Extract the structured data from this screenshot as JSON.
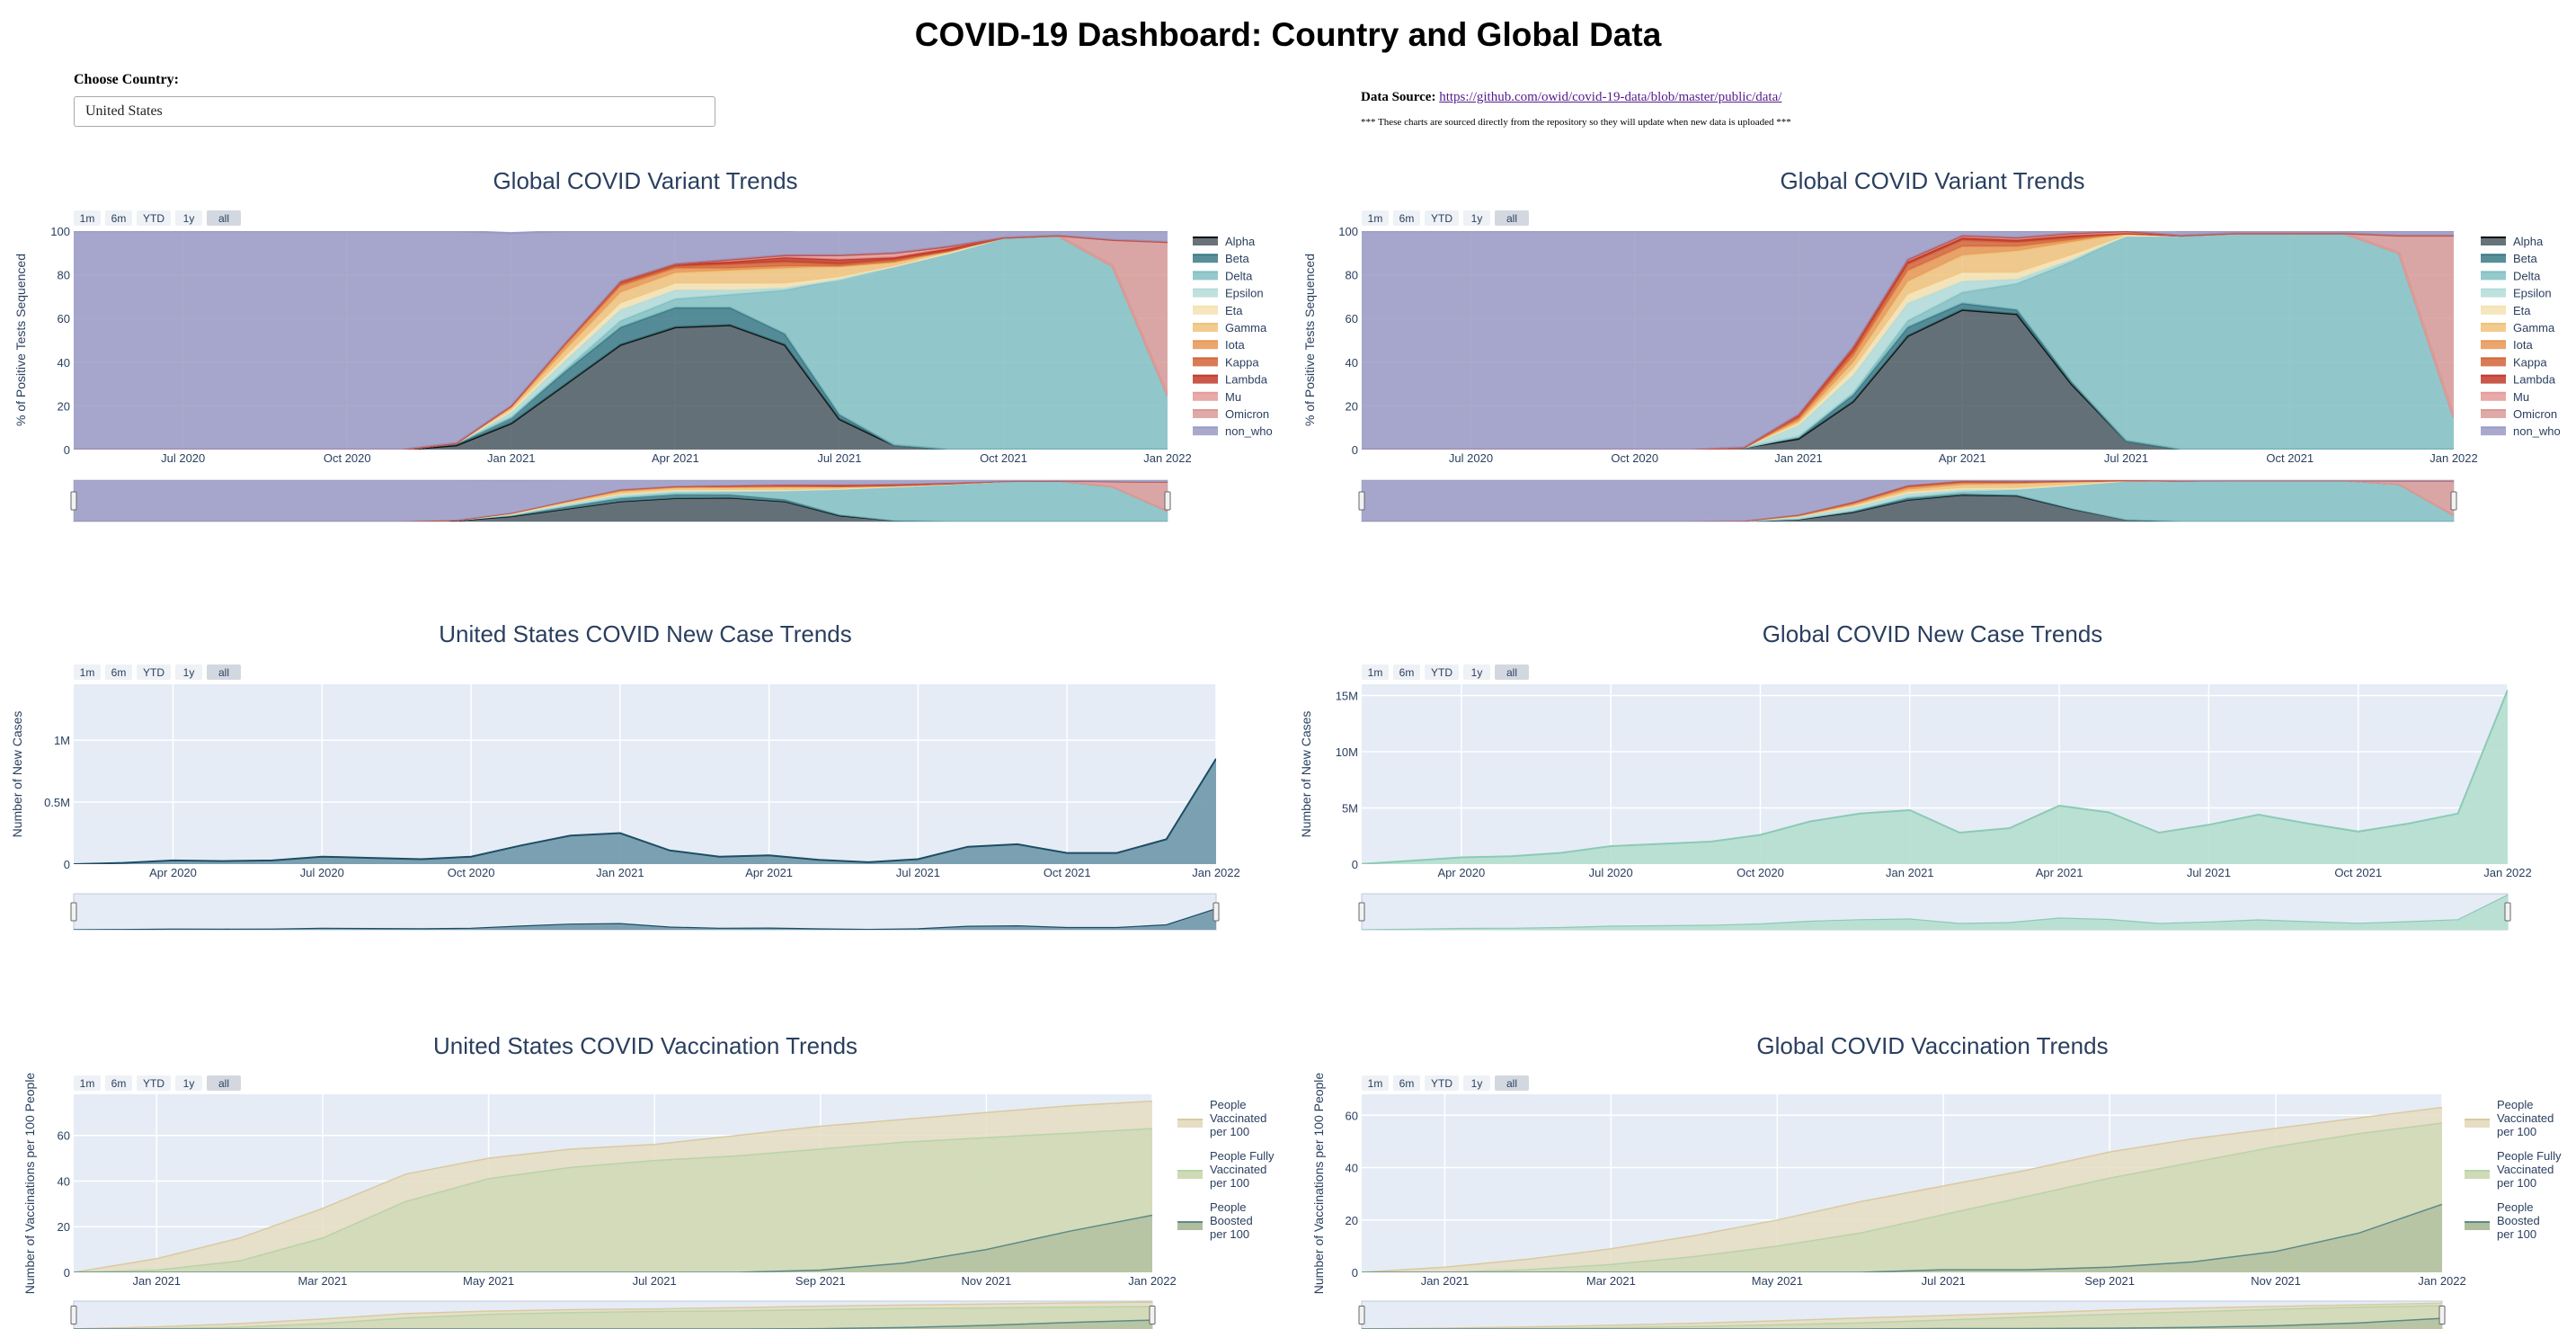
{
  "page": {
    "title": "COVID-19 Dashboard: Country and Global Data",
    "country_label": "Choose Country:",
    "country_value": "United States",
    "source_label": "Data Source:",
    "source_link": "https://github.com/owid/covid-19-data/blob/master/public/data/",
    "source_note": "*** These charts are sourced directly from the repository so they will update when new data is uploaded ***"
  },
  "range_buttons": [
    "1m",
    "6m",
    "YTD",
    "1y",
    "all"
  ],
  "colors": {
    "plot_bg": "#e5ecf6",
    "Alpha": "#4c5a60",
    "Beta": "#3b7a86",
    "Delta": "#82bfc2",
    "Epsilon": "#b3dcd8",
    "Eta": "#f5e2b2",
    "Gamma": "#f0c27a",
    "Iota": "#e89654",
    "Kappa": "#d2643a",
    "Lambda": "#c03a2a",
    "Mu": "#e49a9a",
    "Omicron": "#d89a96",
    "non_who": "#9b9ac4",
    "us_cases": "#6f98aa",
    "us_cases_line": "#1d4e63",
    "global_cases": "#b5dfcf",
    "global_cases_line": "#8ccab5",
    "vacc_people": "#e6ddc2",
    "vacc_full": "#cfdbb7",
    "vacc_boost": "#aebd9e"
  },
  "chart_data": [
    {
      "type": "area",
      "title": "Global COVID Variant Trends",
      "xlabel": "",
      "ylabel": "% of Positive Tests Sequenced",
      "x_ticks": [
        "Jul 2020",
        "Oct 2020",
        "Jan 2021",
        "Apr 2021",
        "Jul 2021",
        "Oct 2021",
        "Jan 2022"
      ],
      "y_ticks": [
        "0",
        "20",
        "40",
        "60",
        "80",
        "100"
      ],
      "ylim": [
        0,
        100
      ],
      "stacked": true,
      "x": [
        "2020-05",
        "2020-06",
        "2020-07",
        "2020-08",
        "2020-09",
        "2020-10",
        "2020-11",
        "2020-12",
        "2021-01",
        "2021-02",
        "2021-03",
        "2021-04",
        "2021-05",
        "2021-06",
        "2021-07",
        "2021-08",
        "2021-09",
        "2021-10",
        "2021-11",
        "2021-12",
        "2022-01"
      ],
      "series": [
        {
          "name": "Alpha",
          "values": [
            0,
            0,
            0,
            0,
            0,
            0,
            0,
            2,
            12,
            30,
            48,
            56,
            57,
            48,
            14,
            2,
            0,
            0,
            0,
            0,
            0
          ]
        },
        {
          "name": "Beta",
          "values": [
            0,
            0,
            0,
            0,
            0,
            0,
            0,
            1,
            3,
            6,
            8,
            9,
            8,
            5,
            2,
            0,
            0,
            0,
            0,
            0,
            0
          ]
        },
        {
          "name": "Delta",
          "values": [
            0,
            0,
            0,
            0,
            0,
            0,
            0,
            0,
            0,
            1,
            3,
            4,
            6,
            20,
            62,
            82,
            90,
            97,
            98,
            84,
            25
          ]
        },
        {
          "name": "Epsilon",
          "values": [
            0,
            0,
            0,
            0,
            0,
            0,
            0,
            0,
            2,
            4,
            5,
            4,
            2,
            1,
            0,
            0,
            0,
            0,
            0,
            0,
            0
          ]
        },
        {
          "name": "Eta",
          "values": [
            0,
            0,
            0,
            0,
            0,
            0,
            0,
            0,
            1,
            2,
            3,
            3,
            3,
            2,
            1,
            0,
            0,
            0,
            0,
            0,
            0
          ]
        },
        {
          "name": "Gamma",
          "values": [
            0,
            0,
            0,
            0,
            0,
            0,
            0,
            0,
            1,
            3,
            5,
            5,
            6,
            7,
            5,
            2,
            1,
            0,
            0,
            0,
            0
          ]
        },
        {
          "name": "Iota",
          "values": [
            0,
            0,
            0,
            0,
            0,
            0,
            0,
            0,
            1,
            2,
            3,
            2,
            1,
            1,
            0,
            0,
            0,
            0,
            0,
            0,
            0
          ]
        },
        {
          "name": "Kappa",
          "values": [
            0,
            0,
            0,
            0,
            0,
            0,
            0,
            0,
            0,
            1,
            1,
            1,
            2,
            2,
            1,
            1,
            0,
            0,
            0,
            0,
            0
          ]
        },
        {
          "name": "Lambda",
          "values": [
            0,
            0,
            0,
            0,
            0,
            0,
            0,
            0,
            0,
            0,
            1,
            1,
            1,
            2,
            2,
            1,
            1,
            0,
            0,
            0,
            0
          ]
        },
        {
          "name": "Mu",
          "values": [
            0,
            0,
            0,
            0,
            0,
            0,
            0,
            0,
            0,
            0,
            0,
            0,
            1,
            1,
            2,
            2,
            1,
            0,
            0,
            0,
            0
          ]
        },
        {
          "name": "Omicron",
          "values": [
            0,
            0,
            0,
            0,
            0,
            0,
            0,
            0,
            0,
            0,
            0,
            0,
            0,
            0,
            0,
            0,
            0,
            0,
            0,
            12,
            70
          ]
        },
        {
          "name": "non_who",
          "values": [
            100,
            100,
            100,
            100,
            100,
            100,
            100,
            97,
            79,
            51,
            23,
            15,
            13,
            11,
            13,
            12,
            7,
            3,
            2,
            4,
            5
          ]
        }
      ]
    },
    {
      "type": "area",
      "title": "Global COVID Variant Trends",
      "xlabel": "",
      "ylabel": "% of Positive Tests Sequenced",
      "x_ticks": [
        "Jul 2020",
        "Oct 2020",
        "Jan 2021",
        "Apr 2021",
        "Jul 2021",
        "Oct 2021",
        "Jan 2022"
      ],
      "y_ticks": [
        "0",
        "20",
        "40",
        "60",
        "80",
        "100"
      ],
      "ylim": [
        0,
        100
      ],
      "stacked": true,
      "x": [
        "2020-05",
        "2020-06",
        "2020-07",
        "2020-08",
        "2020-09",
        "2020-10",
        "2020-11",
        "2020-12",
        "2021-01",
        "2021-02",
        "2021-03",
        "2021-04",
        "2021-05",
        "2021-06",
        "2021-07",
        "2021-08",
        "2021-09",
        "2021-10",
        "2021-11",
        "2021-12",
        "2022-01"
      ],
      "series": [
        {
          "name": "Alpha",
          "values": [
            0,
            0,
            0,
            0,
            0,
            0,
            0,
            1,
            5,
            22,
            52,
            64,
            62,
            30,
            4,
            0,
            0,
            0,
            0,
            0,
            0
          ]
        },
        {
          "name": "Beta",
          "values": [
            0,
            0,
            0,
            0,
            0,
            0,
            0,
            0,
            1,
            3,
            4,
            3,
            2,
            1,
            0,
            0,
            0,
            0,
            0,
            0,
            0
          ]
        },
        {
          "name": "Delta",
          "values": [
            0,
            0,
            0,
            0,
            0,
            0,
            0,
            0,
            0,
            1,
            3,
            5,
            12,
            55,
            94,
            98,
            99,
            99,
            99,
            90,
            15
          ]
        },
        {
          "name": "Epsilon",
          "values": [
            0,
            0,
            0,
            0,
            0,
            0,
            0,
            0,
            5,
            8,
            8,
            5,
            2,
            1,
            0,
            0,
            0,
            0,
            0,
            0,
            0
          ]
        },
        {
          "name": "Eta",
          "values": [
            0,
            0,
            0,
            0,
            0,
            0,
            0,
            0,
            1,
            3,
            4,
            4,
            3,
            2,
            0,
            0,
            0,
            0,
            0,
            0,
            0
          ]
        },
        {
          "name": "Gamma",
          "values": [
            0,
            0,
            0,
            0,
            0,
            0,
            0,
            0,
            1,
            3,
            6,
            8,
            10,
            6,
            1,
            0,
            0,
            0,
            0,
            0,
            0
          ]
        },
        {
          "name": "Iota",
          "values": [
            0,
            0,
            0,
            0,
            0,
            0,
            0,
            0,
            1,
            3,
            5,
            4,
            2,
            1,
            0,
            0,
            0,
            0,
            0,
            0,
            0
          ]
        },
        {
          "name": "Kappa",
          "values": [
            0,
            0,
            0,
            0,
            0,
            0,
            0,
            0,
            1,
            2,
            3,
            3,
            2,
            1,
            0,
            0,
            0,
            0,
            0,
            0,
            0
          ]
        },
        {
          "name": "Lambda",
          "values": [
            0,
            0,
            0,
            0,
            0,
            0,
            0,
            0,
            1,
            1,
            1,
            1,
            1,
            1,
            0,
            0,
            0,
            0,
            0,
            0,
            0
          ]
        },
        {
          "name": "Mu",
          "values": [
            0,
            0,
            0,
            0,
            0,
            0,
            0,
            0,
            0,
            1,
            1,
            1,
            1,
            1,
            1,
            0,
            0,
            0,
            0,
            0,
            0
          ]
        },
        {
          "name": "Omicron",
          "values": [
            0,
            0,
            0,
            0,
            0,
            0,
            0,
            0,
            0,
            0,
            0,
            0,
            0,
            0,
            0,
            0,
            0,
            0,
            0,
            8,
            83
          ]
        },
        {
          "name": "non_who",
          "values": [
            100,
            100,
            100,
            100,
            100,
            100,
            100,
            99,
            84,
            53,
            13,
            2,
            3,
            1,
            4,
            2,
            1,
            1,
            1,
            2,
            2
          ]
        }
      ]
    },
    {
      "type": "area",
      "title": "United States COVID New Case Trends",
      "xlabel": "",
      "ylabel": "Number of New Cases",
      "x_ticks": [
        "Apr 2020",
        "Jul 2020",
        "Oct 2020",
        "Jan 2021",
        "Apr 2021",
        "Jul 2021",
        "Oct 2021",
        "Jan 2022"
      ],
      "y_ticks": [
        "0",
        "0.5M",
        "1M"
      ],
      "ylim": [
        0,
        1450000
      ],
      "x": [
        "2020-02",
        "2020-03",
        "2020-04",
        "2020-05",
        "2020-06",
        "2020-07",
        "2020-08",
        "2020-09",
        "2020-10",
        "2020-11",
        "2020-12",
        "2021-01",
        "2021-02",
        "2021-03",
        "2021-04",
        "2021-05",
        "2021-06",
        "2021-07",
        "2021-08",
        "2021-09",
        "2021-10",
        "2021-11",
        "2021-12",
        "2022-01"
      ],
      "series": [
        {
          "name": "New Cases",
          "values": [
            0,
            10000,
            30000,
            25000,
            30000,
            60000,
            50000,
            40000,
            60000,
            150000,
            230000,
            250000,
            110000,
            60000,
            70000,
            35000,
            15000,
            40000,
            140000,
            160000,
            90000,
            90000,
            200000,
            850000
          ]
        }
      ]
    },
    {
      "type": "area",
      "title": "Global COVID New Case Trends",
      "xlabel": "",
      "ylabel": "Number of New Cases",
      "x_ticks": [
        "Apr 2020",
        "Jul 2020",
        "Oct 2020",
        "Jan 2021",
        "Apr 2021",
        "Jul 2021",
        "Oct 2021",
        "Jan 2022"
      ],
      "y_ticks": [
        "0",
        "5M",
        "10M",
        "15M"
      ],
      "ylim": [
        0,
        16000000
      ],
      "x": [
        "2020-02",
        "2020-03",
        "2020-04",
        "2020-05",
        "2020-06",
        "2020-07",
        "2020-08",
        "2020-09",
        "2020-10",
        "2020-11",
        "2020-12",
        "2021-01",
        "2021-02",
        "2021-03",
        "2021-04",
        "2021-05",
        "2021-06",
        "2021-07",
        "2021-08",
        "2021-09",
        "2021-10",
        "2021-11",
        "2021-12",
        "2022-01"
      ],
      "series": [
        {
          "name": "New Cases",
          "values": [
            20000,
            300000,
            600000,
            700000,
            1000000,
            1600000,
            1800000,
            2000000,
            2600000,
            3800000,
            4500000,
            4800000,
            2800000,
            3200000,
            5200000,
            4600000,
            2800000,
            3500000,
            4400000,
            3600000,
            2900000,
            3600000,
            4500000,
            15500000
          ]
        }
      ]
    },
    {
      "type": "area",
      "title": "United States COVID Vaccination Trends",
      "xlabel": "",
      "ylabel": "Number of Vaccinations per 100 People",
      "x_ticks": [
        "Jan 2021",
        "Mar 2021",
        "May 2021",
        "Jul 2021",
        "Sep 2021",
        "Nov 2021",
        "Jan 2022"
      ],
      "y_ticks": [
        "0",
        "20",
        "40",
        "60"
      ],
      "ylim": [
        0,
        78
      ],
      "x": [
        "2020-12",
        "2021-01",
        "2021-02",
        "2021-03",
        "2021-04",
        "2021-05",
        "2021-06",
        "2021-07",
        "2021-08",
        "2021-09",
        "2021-10",
        "2021-11",
        "2021-12",
        "2022-01"
      ],
      "series": [
        {
          "name": "People Vaccinated per 100",
          "values": [
            0,
            6,
            15,
            28,
            43,
            50,
            54,
            56,
            60,
            64,
            67,
            70,
            73,
            75
          ]
        },
        {
          "name": "People Fully Vaccinated per 100",
          "values": [
            0,
            1,
            5,
            15,
            31,
            41,
            46,
            49,
            51,
            54,
            57,
            59,
            61,
            63
          ]
        },
        {
          "name": "People Boosted per 100",
          "values": [
            0,
            0,
            0,
            0,
            0,
            0,
            0,
            0,
            0,
            1,
            4,
            10,
            18,
            25
          ]
        }
      ]
    },
    {
      "type": "area",
      "title": "Global COVID Vaccination Trends",
      "xlabel": "",
      "ylabel": "Number of Vaccinations per 100 People",
      "x_ticks": [
        "Jan 2021",
        "Mar 2021",
        "May 2021",
        "Jul 2021",
        "Sep 2021",
        "Nov 2021",
        "Jan 2022"
      ],
      "y_ticks": [
        "0",
        "20",
        "40",
        "60"
      ],
      "ylim": [
        0,
        68
      ],
      "x": [
        "2020-12",
        "2021-01",
        "2021-02",
        "2021-03",
        "2021-04",
        "2021-05",
        "2021-06",
        "2021-07",
        "2021-08",
        "2021-09",
        "2021-10",
        "2021-11",
        "2021-12",
        "2022-01"
      ],
      "series": [
        {
          "name": "People Vaccinated per 100",
          "values": [
            0,
            2,
            5,
            9,
            14,
            20,
            27,
            33,
            39,
            46,
            51,
            55,
            59,
            63
          ]
        },
        {
          "name": "People Fully Vaccinated per 100",
          "values": [
            0,
            0,
            1,
            3,
            6,
            10,
            15,
            22,
            29,
            36,
            42,
            48,
            53,
            57
          ]
        },
        {
          "name": "People Boosted per 100",
          "values": [
            0,
            0,
            0,
            0,
            0,
            0,
            0,
            1,
            1,
            2,
            4,
            8,
            15,
            26
          ]
        }
      ]
    }
  ]
}
